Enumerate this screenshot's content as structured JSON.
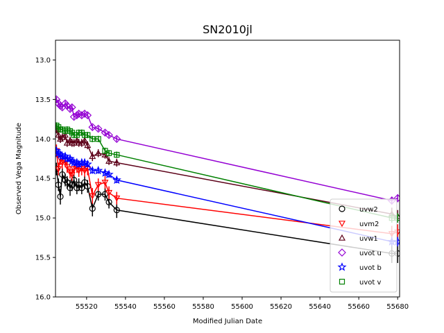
{
  "chart_data": {
    "type": "line",
    "title": "SN2010jl",
    "xlabel": "Modified Julian Date",
    "ylabel": "Observed Vega Magnitude",
    "xlim": [
      55504,
      55681
    ],
    "ylim": [
      16.0,
      12.75
    ],
    "y_inverted": true,
    "xticks": [
      55520,
      55540,
      55560,
      55580,
      55600,
      55620,
      55640,
      55660,
      55680
    ],
    "xtick_labels": [
      "55520",
      "55540",
      "55560",
      "55580",
      "55600",
      "55620",
      "55640",
      "55660",
      "55680"
    ],
    "yticks": [
      13.0,
      13.5,
      14.0,
      14.5,
      15.0,
      15.5,
      16.0
    ],
    "ytick_labels": [
      "13.0",
      "13.5",
      "14.0",
      "14.5",
      "15.0",
      "15.5",
      "16.0"
    ],
    "grid": false,
    "legend_position": "lower-right",
    "series": [
      {
        "name": "uvw2",
        "color": "#000000",
        "marker": "circle",
        "x": [
          55504.5,
          55505.5,
          55506.5,
          55507.5,
          55509.0,
          55510.0,
          55511.5,
          55512.5,
          55513.5,
          55515.0,
          55516.0,
          55517.5,
          55519.0,
          55520.5,
          55523.0,
          55526.0,
          55529.5,
          55531.5,
          55535.5,
          55677.0,
          55680.0
        ],
        "y": [
          14.38,
          14.58,
          14.73,
          14.45,
          14.52,
          14.55,
          14.62,
          14.58,
          14.52,
          14.62,
          14.58,
          14.62,
          14.55,
          14.6,
          14.88,
          14.7,
          14.7,
          14.8,
          14.9,
          15.45,
          15.45
        ],
        "yerr": [
          0.08,
          0.08,
          0.1,
          0.08,
          0.08,
          0.08,
          0.1,
          0.08,
          0.08,
          0.08,
          0.08,
          0.08,
          0.08,
          0.08,
          0.1,
          0.08,
          0.08,
          0.08,
          0.1,
          0.12,
          0.12
        ]
      },
      {
        "name": "uvm2",
        "color": "#ff0000",
        "marker": "triangle-down",
        "x": [
          55504.5,
          55505.5,
          55506.5,
          55507.5,
          55509.0,
          55510.0,
          55511.5,
          55512.5,
          55513.5,
          55515.0,
          55516.0,
          55517.5,
          55519.0,
          55520.5,
          55523.0,
          55526.0,
          55529.5,
          55531.5,
          55535.5,
          55677.0,
          55680.0
        ],
        "y": [
          14.15,
          14.38,
          14.25,
          14.3,
          14.28,
          14.35,
          14.42,
          14.45,
          14.38,
          14.35,
          14.4,
          14.38,
          14.4,
          14.38,
          14.72,
          14.58,
          14.55,
          14.68,
          14.75,
          15.2,
          15.18
        ],
        "yerr": [
          0.08,
          0.08,
          0.08,
          0.08,
          0.08,
          0.08,
          0.08,
          0.08,
          0.08,
          0.08,
          0.08,
          0.08,
          0.08,
          0.08,
          0.1,
          0.08,
          0.08,
          0.08,
          0.08,
          0.1,
          0.1
        ]
      },
      {
        "name": "uvw1",
        "color": "#5c0018",
        "marker": "triangle-up",
        "x": [
          55504.5,
          55505.5,
          55506.5,
          55507.5,
          55509.0,
          55510.0,
          55511.5,
          55512.5,
          55513.5,
          55515.0,
          55516.0,
          55517.5,
          55519.0,
          55520.5,
          55523.0,
          55526.0,
          55529.5,
          55531.5,
          55535.5,
          55677.0,
          55680.0
        ],
        "y": [
          13.88,
          13.95,
          14.0,
          13.98,
          13.95,
          14.05,
          14.02,
          14.05,
          14.05,
          14.02,
          14.05,
          14.05,
          14.02,
          14.08,
          14.22,
          14.18,
          14.2,
          14.28,
          14.3,
          14.95,
          14.98
        ],
        "yerr": [
          0.05,
          0.05,
          0.05,
          0.05,
          0.05,
          0.05,
          0.05,
          0.05,
          0.05,
          0.05,
          0.05,
          0.05,
          0.05,
          0.05,
          0.06,
          0.05,
          0.05,
          0.05,
          0.05,
          0.08,
          0.08
        ]
      },
      {
        "name": "uvot u",
        "color": "#9400d3",
        "marker": "diamond",
        "x": [
          55504.5,
          55505.5,
          55506.5,
          55507.5,
          55509.0,
          55510.0,
          55511.5,
          55512.5,
          55513.5,
          55515.0,
          55516.0,
          55517.5,
          55519.0,
          55520.5,
          55523.0,
          55526.0,
          55529.5,
          55531.5,
          55535.5,
          55677.0,
          55680.0
        ],
        "y": [
          13.5,
          13.55,
          13.58,
          13.6,
          13.55,
          13.58,
          13.62,
          13.6,
          13.72,
          13.7,
          13.68,
          13.7,
          13.68,
          13.7,
          13.85,
          13.87,
          13.92,
          13.95,
          14.0,
          14.78,
          14.75
        ],
        "yerr": [
          0.03,
          0.03,
          0.03,
          0.03,
          0.03,
          0.03,
          0.03,
          0.03,
          0.03,
          0.03,
          0.03,
          0.03,
          0.03,
          0.03,
          0.03,
          0.03,
          0.03,
          0.03,
          0.03,
          0.05,
          0.05
        ]
      },
      {
        "name": "uvot b",
        "color": "#0000ff",
        "marker": "star",
        "x": [
          55504.5,
          55505.5,
          55506.5,
          55507.5,
          55509.0,
          55510.0,
          55511.5,
          55512.5,
          55513.5,
          55515.0,
          55516.0,
          55517.5,
          55519.0,
          55520.5,
          55523.0,
          55526.0,
          55529.5,
          55531.5,
          55535.5,
          55677.0,
          55680.0
        ],
        "y": [
          14.15,
          14.18,
          14.2,
          14.22,
          14.22,
          14.25,
          14.25,
          14.28,
          14.3,
          14.3,
          14.32,
          14.3,
          14.3,
          14.32,
          14.4,
          14.4,
          14.43,
          14.45,
          14.52,
          15.3,
          15.3
        ],
        "yerr": [
          0.04,
          0.04,
          0.04,
          0.04,
          0.04,
          0.04,
          0.04,
          0.04,
          0.04,
          0.04,
          0.04,
          0.04,
          0.04,
          0.04,
          0.04,
          0.04,
          0.04,
          0.04,
          0.04,
          0.06,
          0.06
        ]
      },
      {
        "name": "uvot v",
        "color": "#008000",
        "marker": "square",
        "x": [
          55504.5,
          55505.5,
          55506.5,
          55507.5,
          55509.0,
          55510.0,
          55511.5,
          55512.5,
          55513.5,
          55515.0,
          55516.0,
          55517.5,
          55519.0,
          55520.5,
          55523.0,
          55526.0,
          55529.5,
          55531.5,
          55535.5,
          55677.0,
          55680.0
        ],
        "y": [
          13.83,
          13.85,
          13.88,
          13.88,
          13.9,
          13.88,
          13.9,
          13.92,
          13.95,
          13.95,
          13.92,
          13.92,
          13.95,
          13.95,
          14.0,
          14.0,
          14.15,
          14.18,
          14.2,
          15.0,
          15.0
        ],
        "yerr": [
          0.04,
          0.04,
          0.04,
          0.04,
          0.04,
          0.04,
          0.04,
          0.04,
          0.04,
          0.04,
          0.04,
          0.04,
          0.04,
          0.04,
          0.04,
          0.04,
          0.04,
          0.04,
          0.04,
          0.06,
          0.06
        ]
      }
    ]
  }
}
